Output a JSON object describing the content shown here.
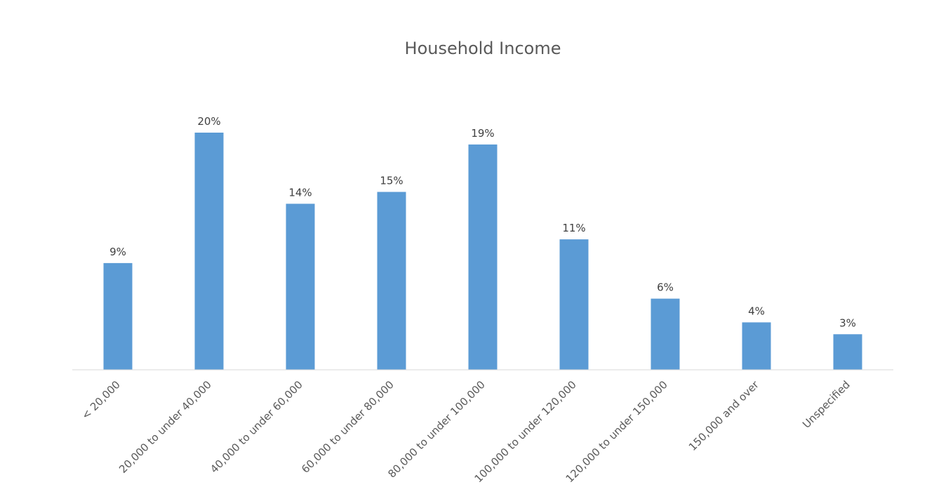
{
  "chart_data": {
    "type": "bar",
    "title": "Household Income",
    "xlabel": "",
    "ylabel": "",
    "categories": [
      "< 20,000",
      "20,000 to under 40,000",
      "40,000 to under 60,000",
      "60,000 to under 80,000",
      "80,000 to under 100,000",
      "100,000 to under 120,000",
      "120,000 to under 150,000",
      "150,000 and over",
      "Unspecified"
    ],
    "values": [
      9,
      20,
      14,
      15,
      19,
      11,
      6,
      4,
      3
    ],
    "data_labels": [
      "9%",
      "20%",
      "14%",
      "15%",
      "19%",
      "11%",
      "6%",
      "4%",
      "3%"
    ],
    "unit": "%",
    "ylim": [
      0,
      20
    ],
    "grid": false,
    "legend": "none",
    "colors": {
      "bar": "#5B9BD5",
      "axis": "#D9D9D9"
    }
  }
}
